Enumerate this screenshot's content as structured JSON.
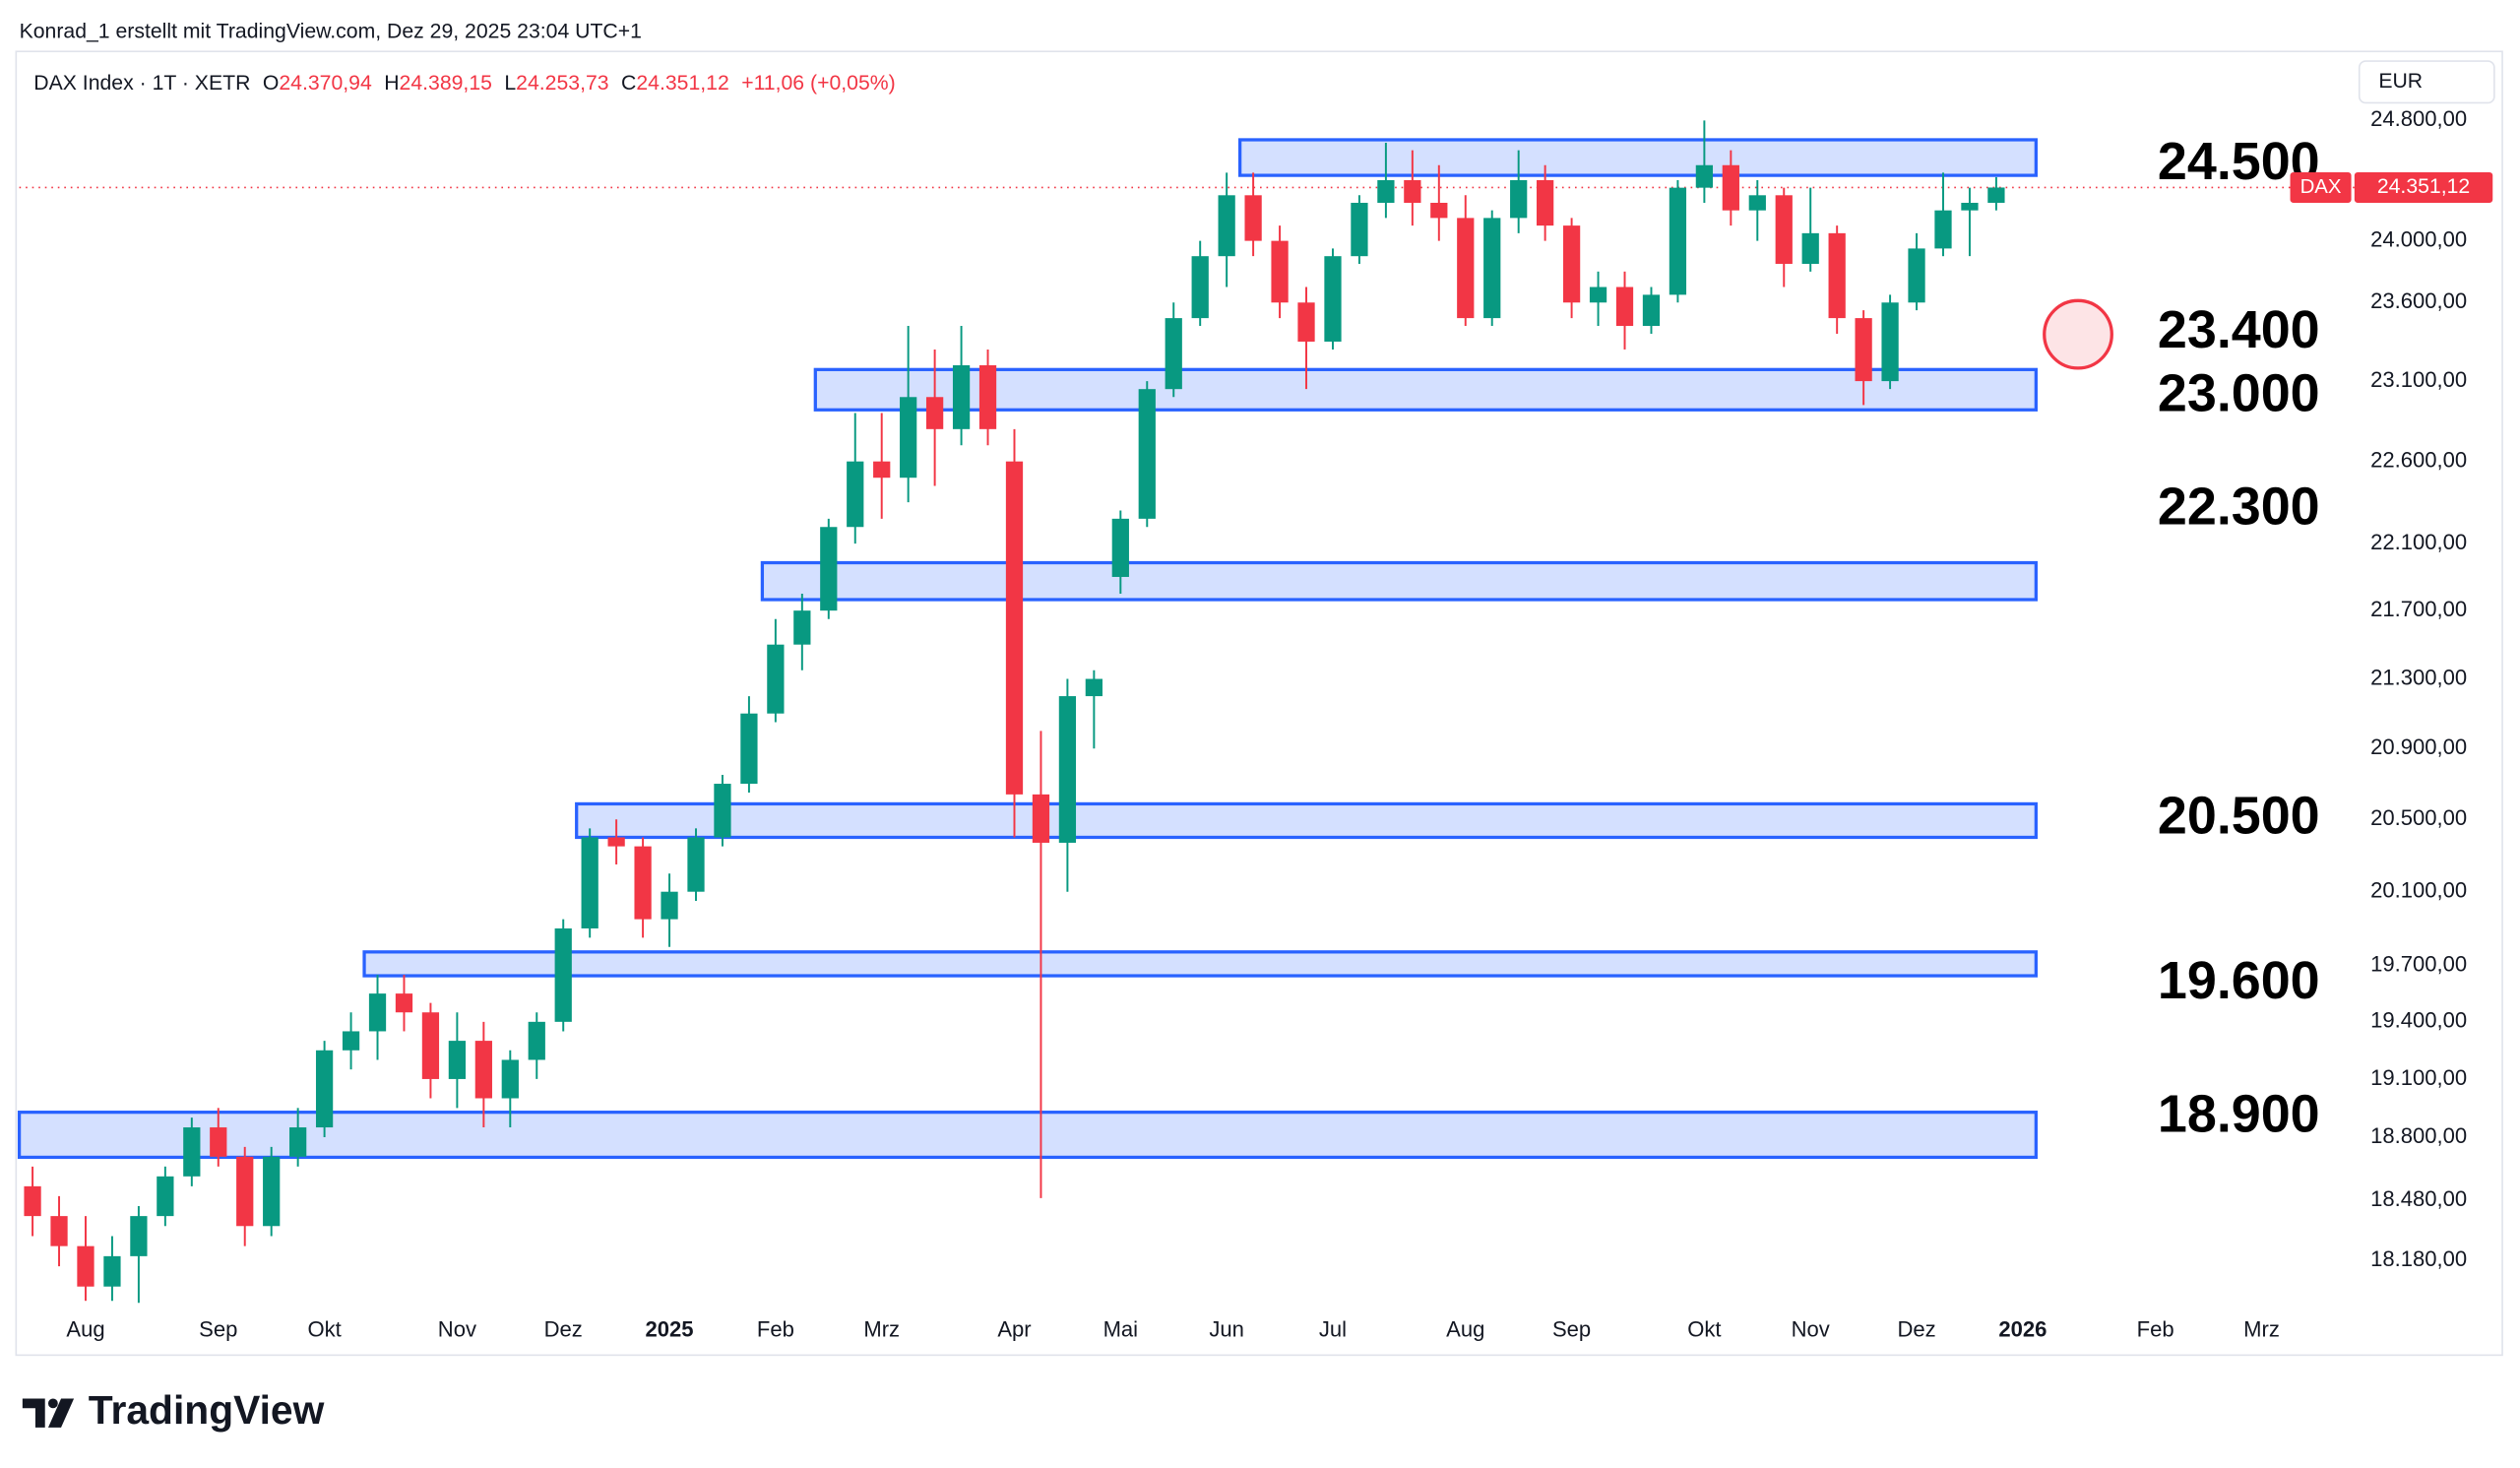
{
  "header": {
    "credit": "Konrad_1 erstellt mit TradingView.com, Dez 29, 2025 23:04 UTC+1",
    "symbol": "DAX Index · 1T · XETR",
    "ohlc": [
      {
        "key": "O",
        "value": "24.370,94"
      },
      {
        "key": "H",
        "value": "24.389,15"
      },
      {
        "key": "L",
        "value": "24.253,73"
      },
      {
        "key": "C",
        "value": "24.351,12"
      }
    ],
    "change": "+11,06 (+0,05%)",
    "currency": "EUR"
  },
  "footer": {
    "logo": "TradingView"
  },
  "chart_data": {
    "type": "candlestick",
    "log_scale": true,
    "grid": false,
    "up_color": "#089981",
    "down_color": "#f23645",
    "categories": [
      null,
      null,
      "Aug",
      null,
      null,
      null,
      null,
      "Sep",
      null,
      null,
      null,
      "Okt",
      null,
      null,
      null,
      null,
      "Nov",
      null,
      null,
      null,
      "Dez",
      null,
      null,
      null,
      "2025",
      null,
      null,
      null,
      "Feb",
      null,
      null,
      null,
      "Mrz",
      null,
      null,
      null,
      null,
      "Apr",
      null,
      null,
      null,
      "Mai",
      null,
      null,
      null,
      "Jun",
      null,
      null,
      null,
      "Jul",
      null,
      null,
      null,
      null,
      "Aug",
      null,
      null,
      null,
      "Sep",
      null,
      null,
      null,
      null,
      "Okt",
      null,
      null,
      null,
      "Nov",
      null,
      null,
      null,
      "Dez",
      null,
      null,
      null,
      "2026",
      null,
      null,
      null,
      null,
      "Feb",
      null,
      null,
      null,
      "Mrz",
      null,
      null,
      null
    ],
    "open": [
      18550,
      18400,
      18250,
      18050,
      18200,
      18400,
      18600,
      18850,
      18700,
      18350,
      18700,
      18850,
      19250,
      19350,
      19550,
      19450,
      19100,
      19300,
      19000,
      19200,
      19400,
      19900,
      20400,
      20350,
      19950,
      20100,
      20400,
      20700,
      21100,
      21500,
      21700,
      22200,
      22600,
      22500,
      23000,
      22800,
      23200,
      22600,
      20640,
      20370,
      21200,
      21900,
      22250,
      23050,
      23500,
      23900,
      24300,
      24000,
      23600,
      23350,
      23900,
      24250,
      24400,
      24250,
      24150,
      23500,
      24150,
      24400,
      24100,
      23600,
      23700,
      23450,
      23650,
      24350,
      24500,
      24200,
      24300,
      23850,
      24050,
      23500,
      23100,
      23600,
      23950,
      24200,
      24250,
      null,
      null,
      null,
      null,
      null,
      null,
      null,
      null,
      null,
      null,
      null,
      null,
      null
    ],
    "high": [
      18650,
      18500,
      18400,
      18300,
      18450,
      18650,
      18900,
      18950,
      18750,
      18750,
      18950,
      19300,
      19450,
      19650,
      19650,
      19500,
      19450,
      19400,
      19250,
      19450,
      19950,
      20450,
      20500,
      20400,
      20200,
      20450,
      20750,
      21200,
      21650,
      21800,
      22250,
      22900,
      22900,
      23450,
      23300,
      23450,
      23300,
      22800,
      21000,
      21300,
      21350,
      22300,
      23100,
      23600,
      24000,
      24450,
      24450,
      24100,
      23700,
      23950,
      24300,
      24650,
      24600,
      24500,
      24300,
      24200,
      24600,
      24500,
      24150,
      23800,
      23800,
      23700,
      24400,
      24800,
      24600,
      24400,
      24350,
      24350,
      24100,
      23550,
      23650,
      24050,
      24450,
      24350,
      24420,
      null,
      null,
      null,
      null,
      null,
      null,
      null,
      null,
      null,
      null,
      null,
      null,
      null
    ],
    "low": [
      18300,
      18150,
      17980,
      17980,
      17970,
      18350,
      18550,
      18650,
      18250,
      18300,
      18650,
      18800,
      19150,
      19200,
      19350,
      19000,
      18950,
      18850,
      18850,
      19100,
      19350,
      19850,
      20250,
      19850,
      19800,
      20050,
      20350,
      20650,
      21050,
      21350,
      21650,
      22100,
      22250,
      22350,
      22450,
      22700,
      22700,
      20400,
      18490,
      20100,
      20900,
      21800,
      22200,
      23000,
      23450,
      23700,
      23900,
      23500,
      23050,
      23300,
      23850,
      24150,
      24100,
      24000,
      23450,
      23450,
      24050,
      24000,
      23500,
      23450,
      23300,
      23400,
      23600,
      24250,
      24100,
      24000,
      23700,
      23800,
      23400,
      22950,
      23050,
      23550,
      23900,
      23900,
      24200,
      null,
      null,
      null,
      null,
      null,
      null,
      null,
      null,
      null,
      null,
      null,
      null,
      null
    ],
    "close": [
      18400,
      18250,
      18050,
      18200,
      18400,
      18600,
      18850,
      18700,
      18350,
      18700,
      18850,
      19250,
      19350,
      19550,
      19450,
      19100,
      19300,
      19000,
      19200,
      19400,
      19900,
      20400,
      20350,
      19950,
      20100,
      20400,
      20700,
      21100,
      21500,
      21700,
      22200,
      22600,
      22500,
      23000,
      22800,
      23200,
      22800,
      20640,
      20370,
      21200,
      21300,
      22250,
      23050,
      23500,
      23900,
      24300,
      24000,
      23600,
      23350,
      23900,
      24250,
      24400,
      24250,
      24150,
      23500,
      24150,
      24400,
      24100,
      23600,
      23700,
      23450,
      23650,
      24350,
      24500,
      24200,
      24300,
      23850,
      24050,
      23500,
      23100,
      23600,
      23950,
      24200,
      24250,
      24351.12,
      null,
      null,
      null,
      null,
      null,
      null,
      null,
      null,
      null,
      null,
      null,
      null,
      null
    ],
    "ylim": [
      17958,
      25271
    ],
    "yticks": [
      {
        "value": 24800,
        "label": "24.800,00"
      },
      {
        "value": 24000,
        "label": "24.000,00"
      },
      {
        "value": 23600,
        "label": "23.600,00"
      },
      {
        "value": 23100,
        "label": "23.100,00"
      },
      {
        "value": 22600,
        "label": "22.600,00"
      },
      {
        "value": 22100,
        "label": "22.100,00"
      },
      {
        "value": 21700,
        "label": "21.700,00"
      },
      {
        "value": 21300,
        "label": "21.300,00"
      },
      {
        "value": 20900,
        "label": "20.900,00"
      },
      {
        "value": 20500,
        "label": "20.500,00"
      },
      {
        "value": 20100,
        "label": "20.100,00"
      },
      {
        "value": 19700,
        "label": "19.700,00"
      },
      {
        "value": 19400,
        "label": "19.400,00"
      },
      {
        "value": 19100,
        "label": "19.100,00"
      },
      {
        "value": 18800,
        "label": "18.800,00"
      },
      {
        "value": 18480,
        "label": "18.480,00"
      },
      {
        "value": 18180,
        "label": "18.180,00"
      }
    ],
    "zones": [
      {
        "low": 24432,
        "high": 24670,
        "from": 46,
        "to": 76
      },
      {
        "low": 22920,
        "high": 23173,
        "from": 30,
        "to": 76
      },
      {
        "low": 21765,
        "high": 21985,
        "from": 28,
        "to": 76
      },
      {
        "low": 20400,
        "high": 20587,
        "from": 21,
        "to": 76
      },
      {
        "low": 19645,
        "high": 19773,
        "from": 13,
        "to": 76
      },
      {
        "low": 18697,
        "high": 18928,
        "from": 0,
        "to": 76
      }
    ],
    "zone_color": "#2962ff",
    "levels": [
      {
        "value": 24500,
        "label": "24.500"
      },
      {
        "value": 23400,
        "label": "23.400"
      },
      {
        "value": 23000,
        "label": "23.000"
      },
      {
        "value": 22300,
        "label": "22.300"
      },
      {
        "value": 20500,
        "label": "20.500"
      },
      {
        "value": 19600,
        "label": "19.600"
      },
      {
        "value": 18900,
        "label": "18.900"
      }
    ],
    "last_price": {
      "value": 24351.12,
      "label": "24.351,12"
    },
    "last_tag": "DAX"
  }
}
